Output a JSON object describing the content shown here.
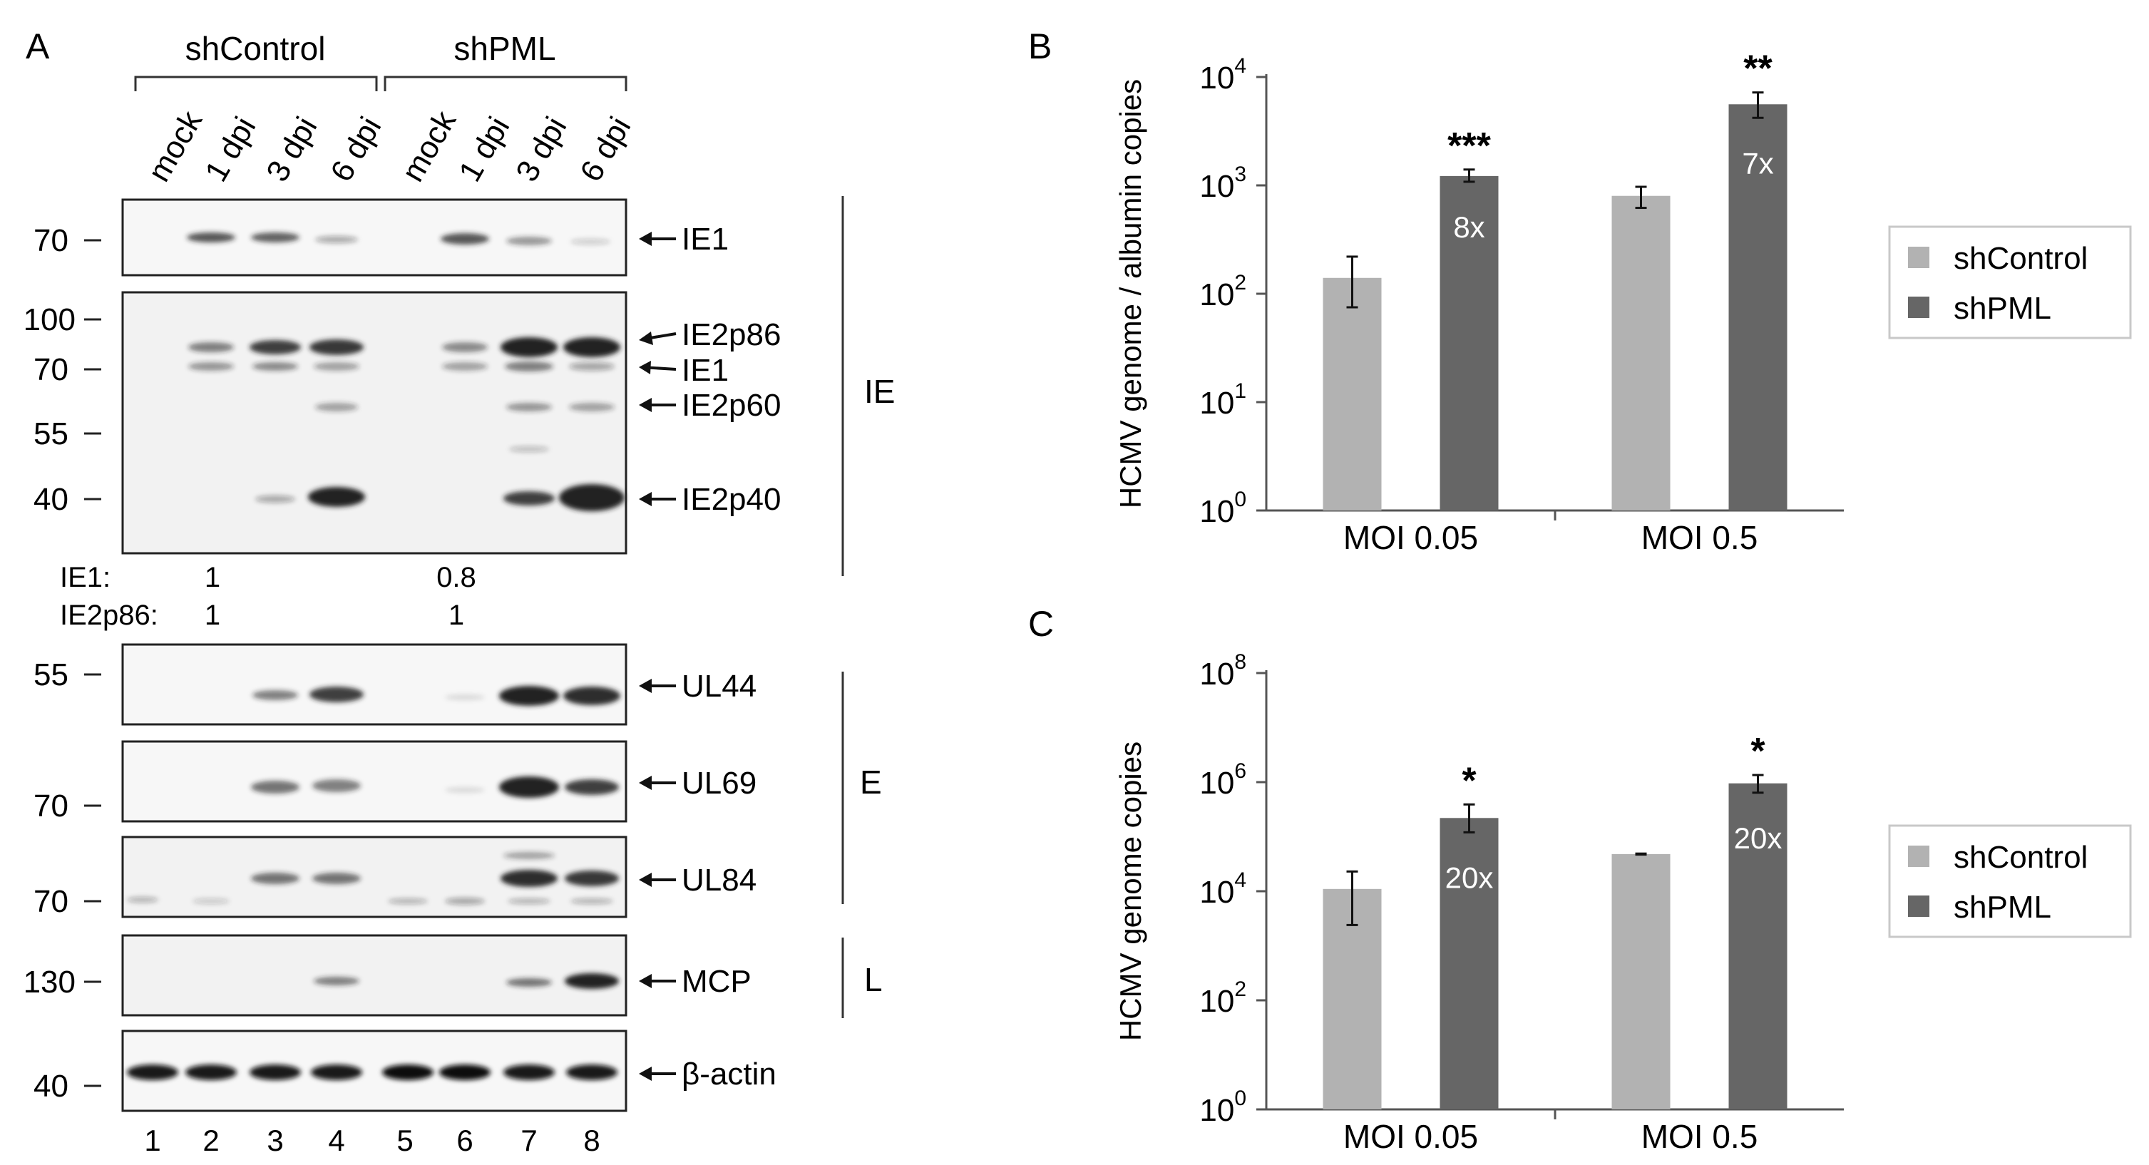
{
  "panel_letters": {
    "a": "A",
    "b": "B",
    "c": "C"
  },
  "blot": {
    "groups": [
      "shControl",
      "shPML"
    ],
    "lane_headers": [
      "mock",
      "1 dpi",
      "3 dpi",
      "6 dpi",
      "mock",
      "1 dpi",
      "3 dpi",
      "6 dpi"
    ],
    "lane_numbers": [
      "1",
      "2",
      "3",
      "4",
      "5",
      "6",
      "7",
      "8"
    ],
    "markers": {
      "ie1_panel": [
        "70"
      ],
      "ie_panel": [
        "100",
        "70",
        "55",
        "40"
      ],
      "ul44_panel": [
        "55"
      ],
      "ul69_panel": [
        "70"
      ],
      "ul84_panel": [
        "70"
      ],
      "mcp_panel": [
        "130"
      ],
      "actin_panel": [
        "40"
      ]
    },
    "band_labels": {
      "ie1": "IE1",
      "ie2p86": "IE2p86",
      "ie1_b": "IE1",
      "ie2p60": "IE2p60",
      "ie2p40": "IE2p40",
      "ul44": "UL44",
      "ul69": "UL69",
      "ul84": "UL84",
      "mcp": "MCP",
      "actin": "β-actin"
    },
    "kinetic_classes": [
      "IE",
      "E",
      "L"
    ],
    "quantification": [
      {
        "label": "IE1:",
        "shControl": "1",
        "shPML": "0.8"
      },
      {
        "label": "IE2p86:",
        "shControl": "1",
        "shPML": "1"
      }
    ]
  },
  "chart_data": [
    {
      "panel": "B",
      "type": "bar",
      "ylabel": "HCMV genome / albumin copies",
      "yscale": "log",
      "ylim": [
        1,
        10000
      ],
      "yticks": [
        "10^0",
        "10^1",
        "10^2",
        "10^3",
        "10^4"
      ],
      "categories": [
        "MOI 0.05",
        "MOI 0.5"
      ],
      "series": [
        {
          "name": "shControl",
          "color": "#b2b2b2",
          "values": [
            140,
            800
          ],
          "err_low": [
            75,
            620
          ],
          "err_high": [
            220,
            970
          ]
        },
        {
          "name": "shPML",
          "color": "#666666",
          "values": [
            1220,
            5600
          ],
          "err_low": [
            1080,
            4200
          ],
          "err_high": [
            1400,
            7200
          ]
        }
      ],
      "fold_labels": [
        "8x",
        "7x"
      ],
      "significance": [
        "***",
        "**"
      ],
      "legend": "right"
    },
    {
      "panel": "C",
      "type": "bar",
      "ylabel": "HCMV genome copies",
      "yscale": "log",
      "ylim": [
        1,
        100000000
      ],
      "yticks": [
        "10^0",
        "10^2",
        "10^4",
        "10^6",
        "10^8"
      ],
      "categories": [
        "MOI 0.05",
        "MOI 0.5"
      ],
      "series": [
        {
          "name": "shControl",
          "color": "#b2b2b2",
          "values": [
            11000,
            48000
          ],
          "err_low": [
            2400,
            47000
          ],
          "err_high": [
            23000,
            49000
          ]
        },
        {
          "name": "shPML",
          "color": "#666666",
          "values": [
            220000,
            950000
          ],
          "err_low": [
            120000,
            640000
          ],
          "err_high": [
            390000,
            1350000
          ]
        }
      ],
      "fold_labels": [
        "20x",
        "20x"
      ],
      "significance": [
        "*",
        "*"
      ],
      "legend": "right"
    }
  ]
}
